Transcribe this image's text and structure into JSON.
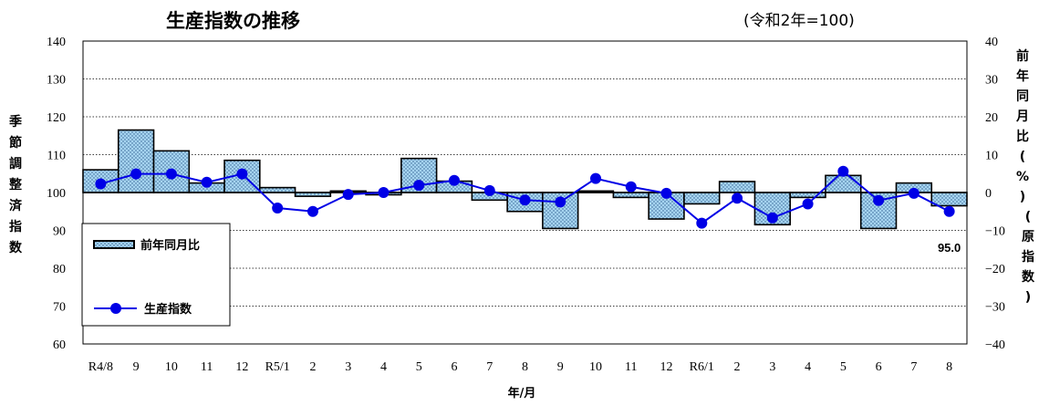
{
  "chart_data": {
    "type": "bar+line",
    "title": "生産指数の推移",
    "subtitle": "(令和2年=100)",
    "xlabel": "年/月",
    "ylabel_left": "季節調整済指数",
    "ylabel_right": "前年同月比(%)(原指数)",
    "ylim_left": [
      60,
      140
    ],
    "yticks_left": [
      "140",
      "130",
      "120",
      "110",
      "100",
      "90",
      "80",
      "70",
      "60"
    ],
    "ylim_right": [
      -40,
      40
    ],
    "yticks_right": [
      "40",
      "30",
      "20",
      "10",
      "0",
      "−10",
      "−20",
      "−30",
      "−40"
    ],
    "categories": [
      "R4/8",
      "9",
      "10",
      "11",
      "12",
      "R5/1",
      "2",
      "3",
      "4",
      "5",
      "6",
      "7",
      "8",
      "9",
      "10",
      "11",
      "12",
      "R6/1",
      "2",
      "3",
      "4",
      "5",
      "6",
      "7",
      "8"
    ],
    "series": [
      {
        "name": "前年同月比",
        "kind": "bar",
        "axis": "right",
        "values": [
          6.0,
          16.5,
          11.0,
          2.5,
          8.5,
          1.3,
          -1.0,
          0.4,
          -0.6,
          9.0,
          3.0,
          -2.0,
          -5.0,
          -9.5,
          0.4,
          -1.3,
          -7.0,
          -3.0,
          2.9,
          -8.5,
          -1.3,
          4.5,
          -9.5,
          2.5,
          -3.5
        ]
      },
      {
        "name": "生産指数",
        "kind": "line",
        "axis": "left",
        "values": [
          102.3,
          104.9,
          104.9,
          102.7,
          104.9,
          95.9,
          95.0,
          99.5,
          100.0,
          101.9,
          103.2,
          100.5,
          98.0,
          97.5,
          103.7,
          101.5,
          99.8,
          91.9,
          98.5,
          93.3,
          97.0,
          105.6,
          97.9,
          99.8,
          95.0
        ]
      }
    ],
    "data_labels": [
      {
        "index": 24,
        "text": "95.0"
      }
    ],
    "legend": {
      "placement": "bottom-left",
      "items": [
        "前年同月比",
        "生産指数"
      ]
    },
    "grid": true,
    "colors": {
      "bar_fill": "#a6d4f0",
      "bar_dots": "#2f5f8f",
      "line": "#0000e6",
      "marker": "#0000e6"
    }
  }
}
